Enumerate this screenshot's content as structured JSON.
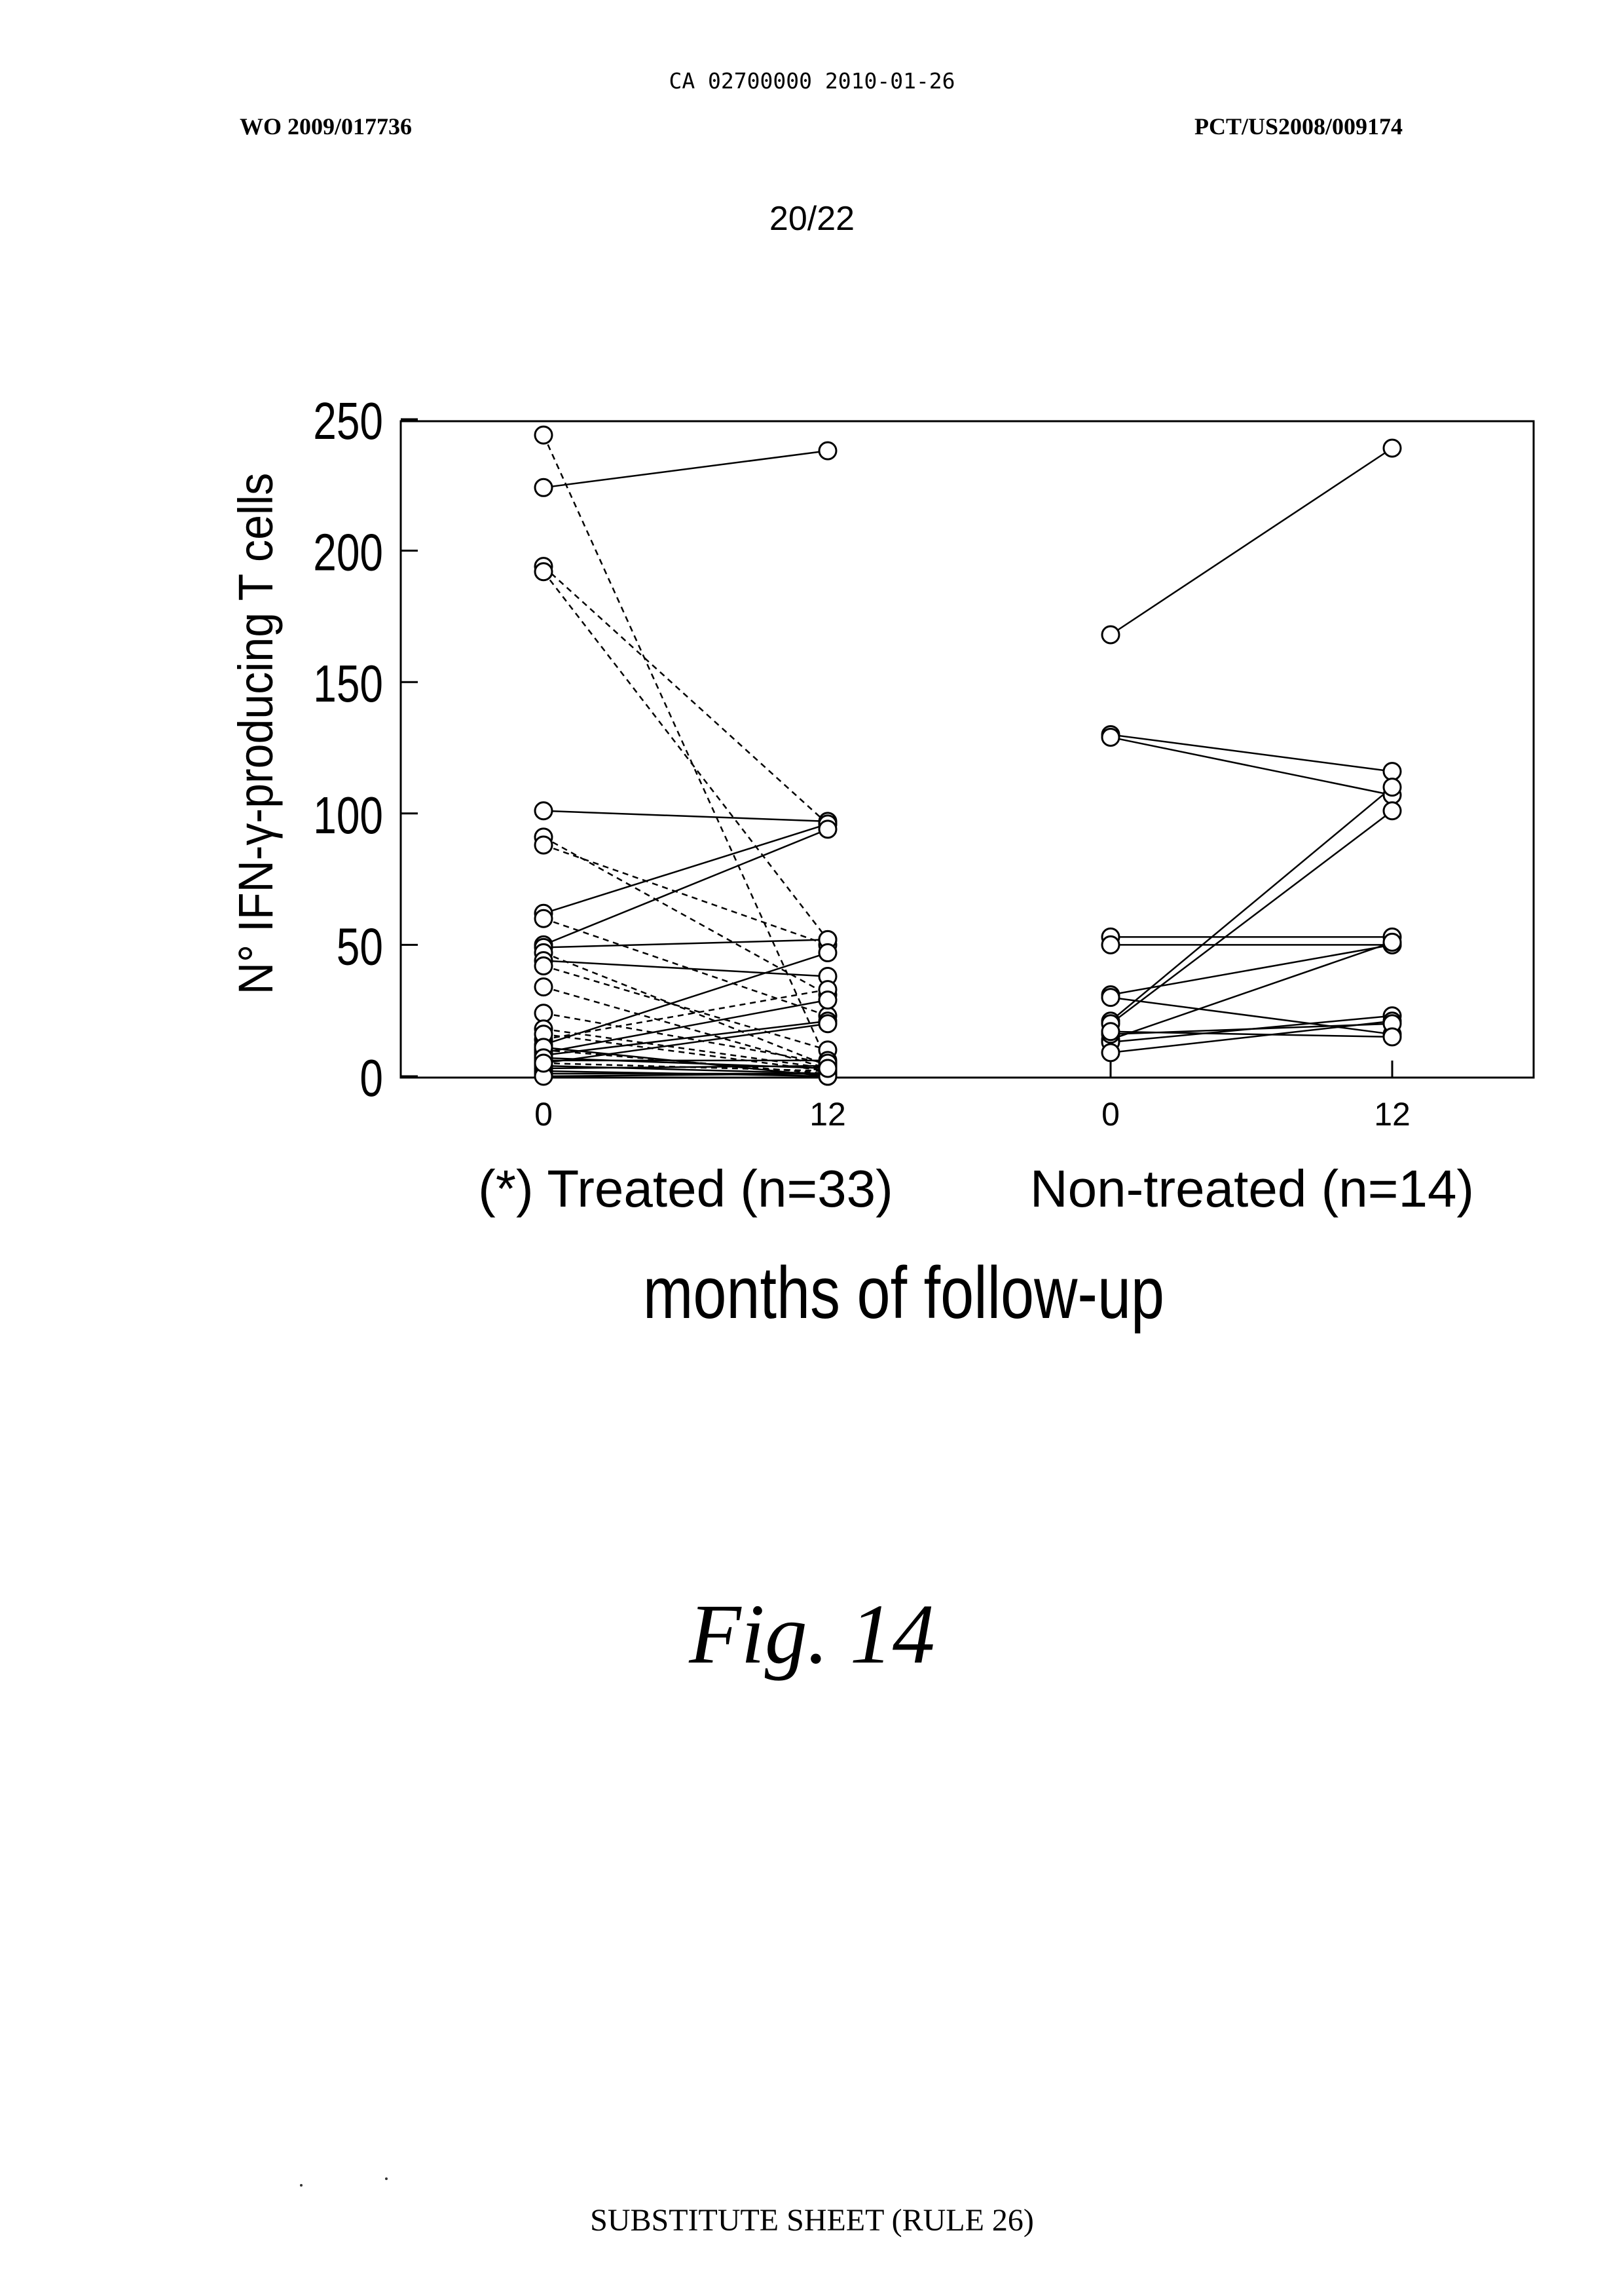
{
  "header": {
    "ca_stamp": "CA 02700000 2010-01-26",
    "wo_number": "WO 2009/017736",
    "pct_number": "PCT/US2008/009174",
    "sheet_number": "20/22"
  },
  "figure": {
    "caption": "Fig. 14"
  },
  "footer": {
    "text": "SUBSTITUTE SHEET (RULE 26)"
  },
  "chart_data": {
    "type": "line",
    "title": "",
    "xlabel": "months of follow-up",
    "ylabel": "N° IFN-γ-producing T cells",
    "ylim": [
      0,
      250
    ],
    "yticks": [
      0,
      50,
      100,
      150,
      200,
      250
    ],
    "grid": false,
    "groups": [
      {
        "label": "(*) Treated (n=33)",
        "x_ticks": [
          "0",
          "12"
        ],
        "pairs": [
          [
            244,
            5,
            "dashed"
          ],
          [
            224,
            238,
            "solid"
          ],
          [
            194,
            96,
            "dashed"
          ],
          [
            192,
            52,
            "dashed"
          ],
          [
            101,
            97,
            "solid"
          ],
          [
            91,
            31,
            "dashed"
          ],
          [
            88,
            50,
            "dashed"
          ],
          [
            62,
            96,
            "solid"
          ],
          [
            60,
            23,
            "dashed"
          ],
          [
            50,
            94,
            "solid"
          ],
          [
            49,
            52,
            "solid"
          ],
          [
            47,
            4,
            "dashed"
          ],
          [
            44,
            38,
            "solid"
          ],
          [
            42,
            10,
            "dashed"
          ],
          [
            34,
            3,
            "dashed"
          ],
          [
            14,
            33,
            "dashed"
          ],
          [
            12,
            47,
            "solid"
          ],
          [
            10,
            1,
            "dashed"
          ],
          [
            9,
            29,
            "solid"
          ],
          [
            8,
            21,
            "solid"
          ],
          [
            6,
            6,
            "solid"
          ],
          [
            5,
            2,
            "dashed"
          ],
          [
            4,
            1,
            "solid"
          ],
          [
            3,
            4,
            "solid"
          ],
          [
            2,
            0,
            "solid"
          ],
          [
            1,
            1,
            "solid"
          ],
          [
            0,
            1,
            "solid"
          ],
          [
            24,
            5,
            "dashed"
          ],
          [
            18,
            3,
            "dashed"
          ],
          [
            16,
            2,
            "dashed"
          ],
          [
            11,
            0,
            "solid"
          ],
          [
            7,
            3,
            "solid"
          ],
          [
            5,
            20,
            "solid"
          ]
        ]
      },
      {
        "label": "Non-treated (n=14)",
        "x_ticks": [
          "0",
          "12"
        ],
        "pairs": [
          [
            168,
            239,
            "solid"
          ],
          [
            130,
            116,
            "solid"
          ],
          [
            129,
            107,
            "solid"
          ],
          [
            53,
            53,
            "solid"
          ],
          [
            50,
            50,
            "solid"
          ],
          [
            31,
            50,
            "solid"
          ],
          [
            30,
            16,
            "solid"
          ],
          [
            21,
            110,
            "solid"
          ],
          [
            20,
            101,
            "solid"
          ],
          [
            14,
            51,
            "solid"
          ],
          [
            13,
            23,
            "solid"
          ],
          [
            9,
            21,
            "solid"
          ],
          [
            16,
            20,
            "solid"
          ],
          [
            17,
            15,
            "solid"
          ]
        ]
      }
    ]
  }
}
